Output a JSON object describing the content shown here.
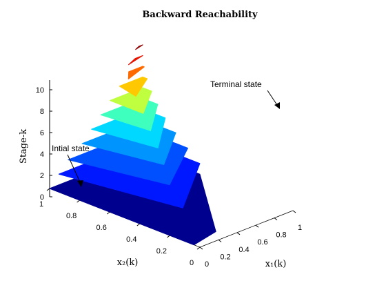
{
  "chart_data": {
    "type": "3d-surface-stack",
    "title": "Backward Reachability",
    "xlabel": "x₁(k)",
    "ylabel": "x₂(k)",
    "zlabel": "Stage-k",
    "xlim": [
      0,
      1
    ],
    "ylim": [
      0,
      1
    ],
    "zlim": [
      0,
      10
    ],
    "x_ticks": [
      "0",
      "0.2",
      "0.4",
      "0.6",
      "0.8",
      "1"
    ],
    "y_ticks": [
      "0",
      "0.2",
      "0.4",
      "0.6",
      "0.8",
      "1"
    ],
    "z_ticks": [
      "0",
      "2",
      "4",
      "6",
      "8",
      "10"
    ],
    "colormap": "jet",
    "layers": [
      {
        "stage": 1,
        "color": "#00008f",
        "poly": [
          [
            0.0,
            0.04
          ],
          [
            0.3,
            0.08
          ],
          [
            1.0,
            0.62
          ],
          [
            1.0,
            1.0
          ],
          [
            0.0,
            1.0
          ]
        ]
      },
      {
        "stage": 2,
        "color": "#0018ff",
        "poly": [
          [
            0.3,
            0.3
          ],
          [
            1.0,
            0.62
          ],
          [
            1.0,
            1.0
          ],
          [
            0.1,
            1.0
          ]
        ]
      },
      {
        "stage": 3,
        "color": "#0050ff",
        "poly": [
          [
            0.4,
            0.45
          ],
          [
            1.0,
            0.7
          ],
          [
            1.0,
            1.0
          ],
          [
            0.2,
            1.0
          ]
        ]
      },
      {
        "stage": 4,
        "color": "#0094ff",
        "poly": [
          [
            0.5,
            0.55
          ],
          [
            1.0,
            0.78
          ],
          [
            1.0,
            1.0
          ],
          [
            0.35,
            1.0
          ]
        ]
      },
      {
        "stage": 5,
        "color": "#00d8ff",
        "poly": [
          [
            0.55,
            0.62
          ],
          [
            1.0,
            0.85
          ],
          [
            1.0,
            1.0
          ],
          [
            0.45,
            1.0
          ]
        ]
      },
      {
        "stage": 6,
        "color": "#3fffbf",
        "poly": [
          [
            0.6,
            0.7
          ],
          [
            1.0,
            0.9
          ],
          [
            1.0,
            1.0
          ],
          [
            0.55,
            1.0
          ]
        ]
      },
      {
        "stage": 7,
        "color": "#bfff3f",
        "poly": [
          [
            0.65,
            0.78
          ],
          [
            1.0,
            0.94
          ],
          [
            1.0,
            1.0
          ],
          [
            0.65,
            1.0
          ]
        ]
      },
      {
        "stage": 8,
        "color": "#ffc800",
        "poly": [
          [
            0.7,
            0.86
          ],
          [
            1.0,
            0.97
          ],
          [
            1.0,
            1.0
          ],
          [
            0.75,
            1.0
          ]
        ]
      },
      {
        "stage": 9,
        "color": "#ff6a00",
        "poly": [
          [
            0.75,
            0.94
          ],
          [
            1.0,
            0.99
          ],
          [
            1.0,
            1.0
          ],
          [
            0.85,
            1.0
          ]
        ]
      },
      {
        "stage": 10,
        "color": "#e61300",
        "poly": [
          [
            0.8,
            0.97
          ],
          [
            1.0,
            1.0
          ],
          [
            0.92,
            1.0
          ]
        ]
      },
      {
        "stage": 11,
        "color": "#8f0000",
        "poly": [
          [
            0.9,
            0.985
          ],
          [
            1.0,
            1.0
          ],
          [
            0.96,
            1.0
          ]
        ]
      }
    ],
    "annotations": [
      {
        "text": "Intial state"
      },
      {
        "text": "Terminal state"
      }
    ]
  }
}
